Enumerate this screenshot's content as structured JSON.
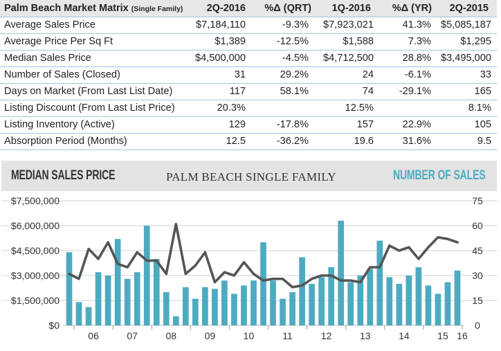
{
  "table": {
    "title": "Palm Beach Market Matrix",
    "title_sub": "(Single Family)",
    "columns": [
      "2Q-2016",
      "%Δ (QRT)",
      "1Q-2016",
      "%Δ (YR)",
      "2Q-2015"
    ],
    "rows": [
      {
        "label": "Average Sales Price",
        "values": [
          "$7,184,110",
          "-9.3%",
          "$7,923,021",
          "41.3%",
          "$5,085,187"
        ]
      },
      {
        "label": "Average Price Per Sq Ft",
        "values": [
          "$1,389",
          "-12.5%",
          "$1,588",
          "7.3%",
          "$1,295"
        ]
      },
      {
        "label": "Median Sales Price",
        "values": [
          "$4,500,000",
          "-4.5%",
          "$4,712,500",
          "28.8%",
          "$3,495,000"
        ]
      },
      {
        "label": "Number of Sales (Closed)",
        "values": [
          "31",
          "29.2%",
          "24",
          "-6.1%",
          "33"
        ]
      },
      {
        "label": "Days on Market (From Last List Date)",
        "values": [
          "117",
          "58.1%",
          "74",
          "-29.1%",
          "165"
        ]
      },
      {
        "label": "Listing Discount (From Last List Price)",
        "values": [
          "20.3%",
          "",
          "12.5%",
          "",
          "8.1%"
        ]
      },
      {
        "label": "Listing Inventory (Active)",
        "values": [
          "129",
          "-17.8%",
          "157",
          "22.9%",
          "105"
        ]
      },
      {
        "label": "Absorption Period (Months)",
        "values": [
          "12.5",
          "-36.2%",
          "19.6",
          "31.6%",
          "9.5"
        ]
      }
    ]
  },
  "chart_data": {
    "type": "bar",
    "title": "PALM BEACH SINGLE FAMILY",
    "left_title": "MEDIAN SALES PRICE",
    "right_title": "NUMBER OF SALES",
    "x_tick_labels": [
      "06",
      "07",
      "08",
      "09",
      "10",
      "11",
      "12",
      "13",
      "14",
      "15",
      "16"
    ],
    "year_tick_index": [
      1,
      5,
      9,
      13,
      17,
      21,
      25,
      29,
      33,
      37,
      41
    ],
    "ylim_left": [
      0,
      7500000
    ],
    "ylim_right": [
      0,
      75
    ],
    "y_left_ticks": [
      "$0",
      "$1,500,000",
      "$3,000,000",
      "$4,500,000",
      "$6,000,000",
      "$7,500,000"
    ],
    "y_right_ticks": [
      "0",
      "15",
      "30",
      "45",
      "60",
      "75"
    ],
    "series": [
      {
        "name": "Median Sales Price",
        "kind": "bar",
        "color": "#4dabc1",
        "values": [
          4400000,
          1400000,
          1100000,
          3200000,
          3000000,
          5200000,
          2800000,
          3200000,
          6000000,
          4000000,
          2000000,
          550000,
          2300000,
          1600000,
          2300000,
          2200000,
          2700000,
          1900000,
          2400000,
          2700000,
          5000000,
          2700000,
          1600000,
          2000000,
          4100000,
          2500000,
          2900000,
          3500000,
          6300000,
          2600000,
          3000000,
          3400000,
          5100000,
          2900000,
          2500000,
          3000000,
          3500000,
          2400000,
          1900000,
          2600000,
          3300000
        ]
      },
      {
        "name": "Number of Sales",
        "kind": "line",
        "color": "#555555",
        "values": [
          31,
          28,
          46,
          40,
          50,
          37,
          35,
          44,
          39,
          39,
          31,
          61,
          31,
          36,
          44,
          26,
          32,
          30,
          38,
          31,
          27,
          28,
          28,
          23,
          24,
          28,
          30,
          30,
          27,
          27,
          26,
          35,
          35,
          48,
          45,
          47,
          40,
          47,
          53,
          52,
          50
        ]
      }
    ],
    "grid": "horizontal"
  }
}
